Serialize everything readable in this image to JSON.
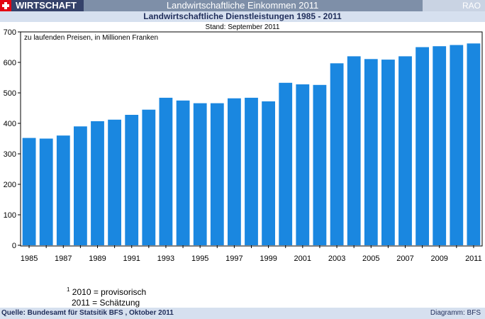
{
  "header": {
    "section_label": "WIRTSCHAFT",
    "main_title": "Landwirtschaftliche Einkommen 2011",
    "code": "RAO",
    "flag_icon": "swiss-flag-icon",
    "colors": {
      "banner": "#7e8fa8",
      "section": "#35426a",
      "subbanner": "#d6e0ef",
      "flag": "#e30613"
    }
  },
  "chart_data": {
    "type": "bar",
    "title": "Landwirtschaftliche Dienstleistungen 1985 - 2011",
    "subtitle": "Stand: September 2011",
    "annotation": "zu laufenden Preisen, in Millionen Franken",
    "categories": [
      "1985",
      "1986",
      "1987",
      "1988",
      "1989",
      "1990",
      "1991",
      "1992",
      "1993",
      "1994",
      "1995",
      "1996",
      "1997",
      "1998",
      "1999",
      "2000",
      "2001",
      "2002",
      "2003",
      "2004",
      "2005",
      "2006",
      "2007",
      "2008",
      "2009",
      "2010",
      "2011"
    ],
    "x_tick_labels": [
      "1985",
      "1987",
      "1989",
      "1991",
      "1993",
      "1995",
      "1997",
      "1999",
      "2001",
      "2003",
      "2005",
      "2007",
      "2009",
      "2011"
    ],
    "values": [
      352,
      350,
      360,
      390,
      407,
      412,
      428,
      445,
      484,
      475,
      466,
      466,
      482,
      484,
      472,
      533,
      528,
      526,
      597,
      620,
      611,
      609,
      620,
      650,
      653,
      657,
      662
    ],
    "ylim": [
      0,
      700
    ],
    "y_ticks": [
      0,
      100,
      200,
      300,
      400,
      500,
      600,
      700
    ],
    "grid": false,
    "bar_color": "#1a87e0",
    "xlabel": "",
    "ylabel": ""
  },
  "footnote": {
    "marker": "1",
    "line1": "2010 = provisorisch",
    "line2": "2011 = Schätzung"
  },
  "footer": {
    "source": "Quelle: Bundesamt für Statsitik BFS , Oktober 2011",
    "credit": "Diagramm: BFS"
  }
}
